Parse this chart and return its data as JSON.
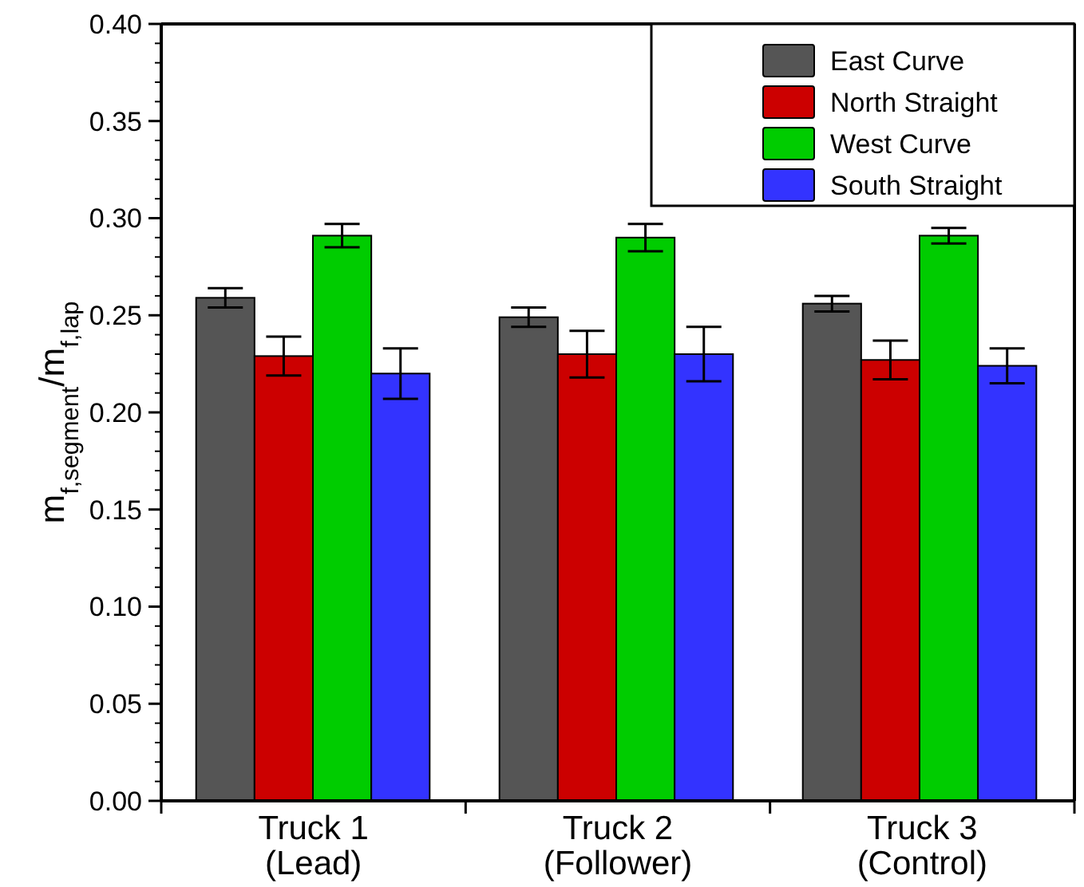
{
  "chart_data": {
    "type": "bar",
    "ylabel": "m$_{f,segment}$/m$_{f,lap}$",
    "categories": [
      "Truck 1\n(Lead)",
      "Truck 2\n(Follower)",
      "Truck 3\n(Control)"
    ],
    "series": [
      {
        "name": "East Curve",
        "color": "#555555",
        "values": [
          0.259,
          0.249,
          0.256
        ],
        "errors": [
          0.005,
          0.005,
          0.004
        ]
      },
      {
        "name": "North Straight",
        "color": "#cc0000",
        "values": [
          0.229,
          0.23,
          0.227
        ],
        "errors": [
          0.01,
          0.012,
          0.01
        ]
      },
      {
        "name": "West Curve",
        "color": "#00cc00",
        "values": [
          0.291,
          0.29,
          0.291
        ],
        "errors": [
          0.006,
          0.007,
          0.004
        ]
      },
      {
        "name": "South Straight",
        "color": "#3333ff",
        "values": [
          0.22,
          0.23,
          0.224
        ],
        "errors": [
          0.013,
          0.014,
          0.009
        ]
      }
    ],
    "ylim": [
      0,
      0.4
    ],
    "yticks": [
      {
        "value": 0,
        "label": "0.00"
      },
      {
        "value": 0.05,
        "label": "0.05"
      },
      {
        "value": 0.1,
        "label": "0.10"
      },
      {
        "value": 0.15,
        "label": "0.15"
      },
      {
        "value": 0.2,
        "label": "0.20"
      },
      {
        "value": 0.25,
        "label": "0.25"
      },
      {
        "value": 0.3,
        "label": "0.30"
      },
      {
        "value": 0.35,
        "label": "0.35"
      },
      {
        "value": 0.4,
        "label": "0.40"
      }
    ],
    "grid": false,
    "legend": "top right"
  }
}
